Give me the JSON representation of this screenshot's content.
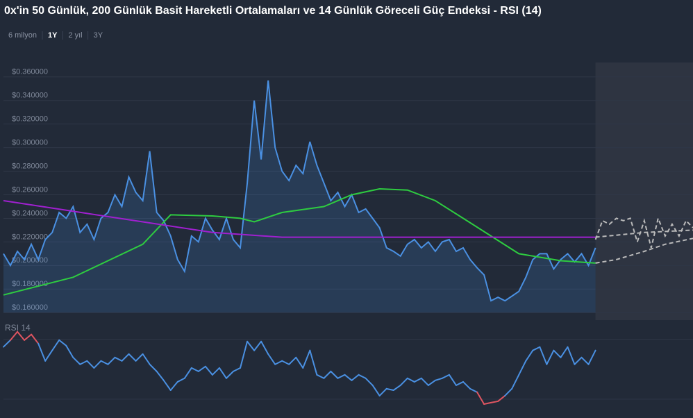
{
  "chart_data": {
    "type": "line",
    "title": "0x'in 50 Günlük, 200 Günlük Basit Hareketli Ortalamaları ve 14 Günlük Göreceli Güç Endeksi - RSI (14)",
    "ranges": [
      "6 milyon",
      "1Y",
      "2 yıl",
      "3Y"
    ],
    "active_range": 1,
    "ylim": [
      0.156,
      0.364
    ],
    "yticks": [
      {
        "value": 0.16,
        "label": "$0.160000"
      },
      {
        "value": 0.18,
        "label": "$0.180000"
      },
      {
        "value": 0.2,
        "label": "$0.200000"
      },
      {
        "value": 0.22,
        "label": "$0.220000"
      },
      {
        "value": 0.24,
        "label": "$0.240000"
      },
      {
        "value": 0.26,
        "label": "$0.260000"
      },
      {
        "value": 0.28,
        "label": "$0.280000"
      },
      {
        "value": 0.3,
        "label": "$0.300000"
      },
      {
        "value": 0.32,
        "label": "$0.320000"
      },
      {
        "value": 0.34,
        "label": "$0.340000"
      },
      {
        "value": 0.36,
        "label": "$0.360000"
      }
    ],
    "xlim": [
      0,
      99
    ],
    "forecast_start": 85,
    "grid": true,
    "series": [
      {
        "color": "#4a90e2",
        "area": true,
        "values": [
          0.21,
          0.2,
          0.212,
          0.205,
          0.218,
          0.205,
          0.222,
          0.228,
          0.245,
          0.24,
          0.25,
          0.228,
          0.235,
          0.222,
          0.24,
          0.245,
          0.26,
          0.25,
          0.275,
          0.262,
          0.255,
          0.297,
          0.245,
          0.238,
          0.225,
          0.205,
          0.195,
          0.225,
          0.22,
          0.24,
          0.23,
          0.222,
          0.24,
          0.222,
          0.215,
          0.27,
          0.34,
          0.29,
          0.357,
          0.3,
          0.28,
          0.272,
          0.285,
          0.278,
          0.305,
          0.285,
          0.27,
          0.255,
          0.262,
          0.25,
          0.26,
          0.245,
          0.248,
          0.24,
          0.232,
          0.215,
          0.212,
          0.208,
          0.218,
          0.222,
          0.215,
          0.22,
          0.212,
          0.22,
          0.222,
          0.212,
          0.215,
          0.205,
          0.198,
          0.192,
          0.17,
          0.173,
          0.17,
          0.174,
          0.178,
          0.19,
          0.205,
          0.21,
          0.21,
          0.197,
          0.205,
          0.21,
          0.203,
          0.21,
          0.2,
          0.215
        ]
      },
      {
        "color": "#2ecc40",
        "x": [
          0,
          10,
          20,
          24,
          30,
          34,
          36,
          40,
          46,
          50,
          54,
          58,
          62,
          66,
          70,
          74,
          80,
          85
        ],
        "values": [
          0.175,
          0.19,
          0.218,
          0.243,
          0.242,
          0.24,
          0.237,
          0.245,
          0.25,
          0.26,
          0.265,
          0.264,
          0.255,
          0.24,
          0.225,
          0.21,
          0.204,
          0.202
        ]
      },
      {
        "color": "#a020d0",
        "x": [
          0,
          10,
          20,
          30,
          40,
          50,
          60,
          70,
          80,
          85
        ],
        "values": [
          0.255,
          0.246,
          0.237,
          0.228,
          0.224,
          0.224,
          0.224,
          0.224,
          0.224,
          0.224
        ]
      },
      {
        "color": "#bbbbbb",
        "dashed": true,
        "x": [
          85,
          86,
          87,
          88,
          89,
          90,
          91,
          92,
          93,
          94,
          95,
          96,
          97,
          98,
          99
        ],
        "values": [
          0.222,
          0.238,
          0.235,
          0.24,
          0.238,
          0.24,
          0.22,
          0.238,
          0.215,
          0.24,
          0.225,
          0.235,
          0.225,
          0.238,
          0.232
        ]
      },
      {
        "color": "#bbbbbb",
        "dashed": true,
        "x": [
          85,
          88,
          92,
          95,
          99
        ],
        "values": [
          0.202,
          0.205,
          0.212,
          0.218,
          0.223
        ]
      },
      {
        "color": "#bbbbbb",
        "dashed": true,
        "x": [
          85,
          92,
          99
        ],
        "values": [
          0.224,
          0.228,
          0.23
        ]
      }
    ],
    "rsi": {
      "label": "RSI 14",
      "ylim": [
        23,
        75
      ],
      "levels": [
        30,
        70
      ],
      "color": "#4a90e2",
      "alert_color": "#e05561",
      "values": [
        65,
        69.5,
        75.1,
        69.5,
        73.3,
        67.2,
        55.6,
        62.6,
        69.5,
        65.8,
        57.9,
        53.3,
        55.6,
        50.9,
        55.6,
        53.3,
        57.9,
        55.6,
        60.2,
        55.6,
        60.2,
        53.3,
        48.6,
        42.6,
        36.0,
        41.6,
        44.0,
        50.9,
        48.6,
        51.9,
        46.3,
        50.9,
        44.0,
        48.6,
        50.9,
        68.6,
        62.6,
        68.6,
        60.2,
        53.3,
        55.6,
        53.3,
        57.9,
        50.9,
        62.6,
        46.3,
        44.0,
        48.6,
        44.0,
        46.3,
        42.6,
        46.3,
        44.0,
        39.3,
        32.3,
        37.0,
        36.0,
        39.3,
        44.0,
        41.6,
        44.0,
        39.3,
        42.6,
        44.0,
        46.3,
        39.3,
        41.6,
        37.0,
        34.7,
        26.7,
        27.7,
        28.6,
        32.3,
        37.0,
        46.3,
        55.6,
        62.6,
        64.9,
        53.3,
        62.6,
        57.9,
        64.9,
        53.3,
        57.9,
        53.3,
        62.6
      ]
    }
  }
}
